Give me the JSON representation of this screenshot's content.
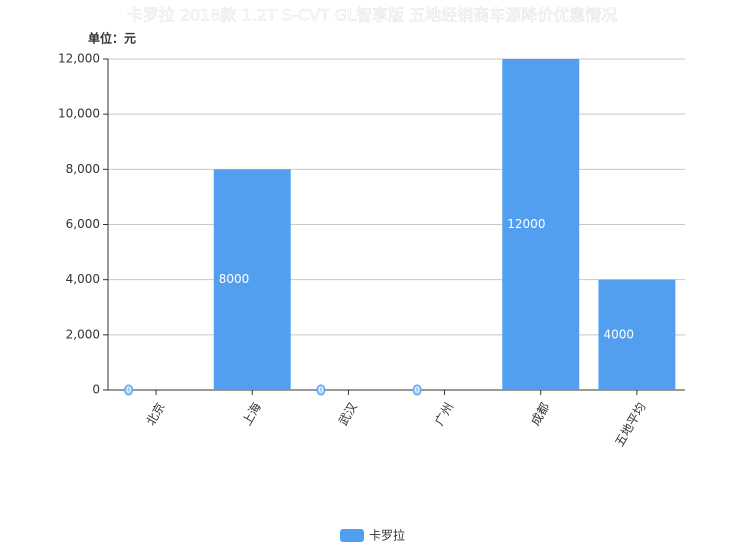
{
  "chart_data": {
    "type": "bar",
    "title": "卡罗拉 2018款 1.2T S-CVT GL智享版 五地经销商车源降价优惠情况",
    "y_axis_label": "单位：元",
    "categories": [
      "北京",
      "上海",
      "武汉",
      "广州",
      "成都",
      "五地平均"
    ],
    "series": [
      {
        "name": "卡罗拉",
        "color": "#529ff0",
        "values": [
          0,
          8000,
          0,
          0,
          12000,
          4000
        ]
      }
    ],
    "ylim": [
      0,
      12000
    ],
    "yticks": [
      0,
      {
        "value": 2000,
        "label": "2,000"
      },
      {
        "value": 4000,
        "label": "4,000"
      },
      {
        "value": 6000,
        "label": "6,000"
      },
      {
        "value": 8000,
        "label": "8,000"
      },
      {
        "value": 10000,
        "label": "10,000"
      },
      {
        "value": 12000,
        "label": "12,000"
      }
    ],
    "grid": true
  }
}
